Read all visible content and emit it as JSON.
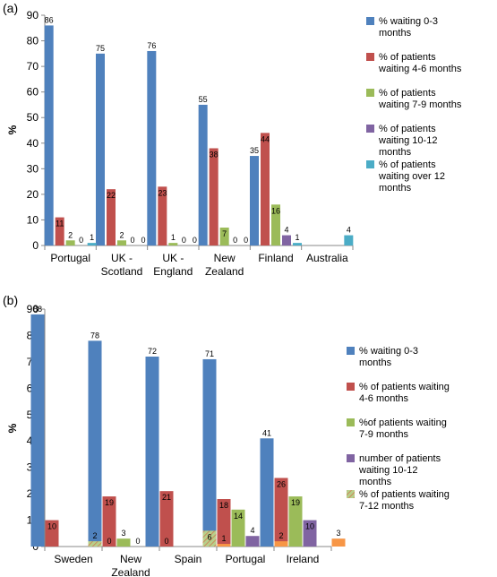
{
  "chart_data": [
    {
      "type": "bar",
      "panel_label": "(a)",
      "ylabel": "%",
      "ylim": [
        0,
        90
      ],
      "yticks": [
        0,
        10,
        20,
        30,
        40,
        50,
        60,
        70,
        80,
        90
      ],
      "categories": [
        "Portugal",
        "UK - Scotland",
        "UK - England",
        "New Zealand",
        "Finland",
        "Australia"
      ],
      "legend_position": "right",
      "series": [
        {
          "name": "% waiting 0-3 months",
          "color": "#4f81bd",
          "pattern": false,
          "values": [
            86,
            75,
            76,
            55,
            35,
            null
          ],
          "labels": [
            "86",
            "75",
            "76",
            "55",
            "35",
            ""
          ]
        },
        {
          "name": "% of patients waiting 4-6 months",
          "color": "#c0504d",
          "pattern": false,
          "values": [
            11,
            22,
            23,
            38,
            44,
            null
          ],
          "labels": [
            "11",
            "22",
            "23",
            "38",
            "44",
            ""
          ]
        },
        {
          "name": "% of patients waiting 7-9 months",
          "color": "#9bbb59",
          "pattern": false,
          "values": [
            2,
            2,
            1,
            7,
            16,
            null
          ],
          "labels": [
            "2",
            "2",
            "1",
            "7",
            "16",
            ""
          ]
        },
        {
          "name": "% of patients waiting 10-12 months",
          "color": "#8064a2",
          "pattern": false,
          "values": [
            0,
            0,
            0,
            0,
            4,
            null
          ],
          "labels": [
            "0",
            "0",
            "0",
            "0",
            "4",
            ""
          ]
        },
        {
          "name": "% of patients waiting over 12 months",
          "color": "#4bacc6",
          "pattern": false,
          "values": [
            1,
            0,
            0,
            0,
            1,
            4
          ],
          "labels": [
            "1",
            "0",
            "0",
            "0",
            "1",
            "4"
          ]
        }
      ]
    },
    {
      "type": "bar",
      "panel_label": "(b)",
      "ylabel": "%",
      "ylim": [
        0,
        90
      ],
      "yticks": [
        0,
        10,
        20,
        30,
        40,
        50,
        60,
        70,
        80,
        90
      ],
      "categories": [
        "Sweden",
        "New Zealand",
        "Spain",
        "Portugal",
        "Ireland"
      ],
      "legend_position": "right",
      "series": [
        {
          "name": "% waiting 0-3 months",
          "color": "#4f81bd",
          "pattern": false,
          "values": [
            88,
            78,
            72,
            71,
            41
          ],
          "labels": [
            "88",
            "78",
            "72",
            "71",
            "41"
          ]
        },
        {
          "name": "% of patients waiting 4-6 months",
          "color": "#c0504d",
          "pattern": false,
          "values": [
            10,
            19,
            21,
            18,
            26
          ],
          "labels": [
            "10",
            "19",
            "21",
            "18",
            "26"
          ]
        },
        {
          "name": "%of patients waiting 7-9 months",
          "color": "#9bbb59",
          "pattern": false,
          "values": [
            null,
            3,
            null,
            14,
            19
          ],
          "labels": [
            "",
            "3",
            "",
            "14",
            "19"
          ]
        },
        {
          "name": "number of patients waiting 10-12 months",
          "color": "#8064a2",
          "pattern": false,
          "values": [
            null,
            0,
            null,
            4,
            10
          ],
          "labels": [
            "",
            "0",
            "",
            "4",
            "10"
          ]
        },
        {
          "name": "% of patients waiting 7-12 months",
          "color": "#9bbb59",
          "pattern": true,
          "values": [
            2,
            null,
            6,
            null,
            null
          ],
          "labels": [
            "2",
            "",
            "6",
            "",
            ""
          ]
        },
        {
          "name": "",
          "color": "#f79646",
          "pattern": false,
          "values": [
            0,
            0,
            1,
            2,
            3
          ],
          "labels": [
            "0",
            "0",
            "1",
            "2",
            "3"
          ]
        }
      ]
    }
  ]
}
